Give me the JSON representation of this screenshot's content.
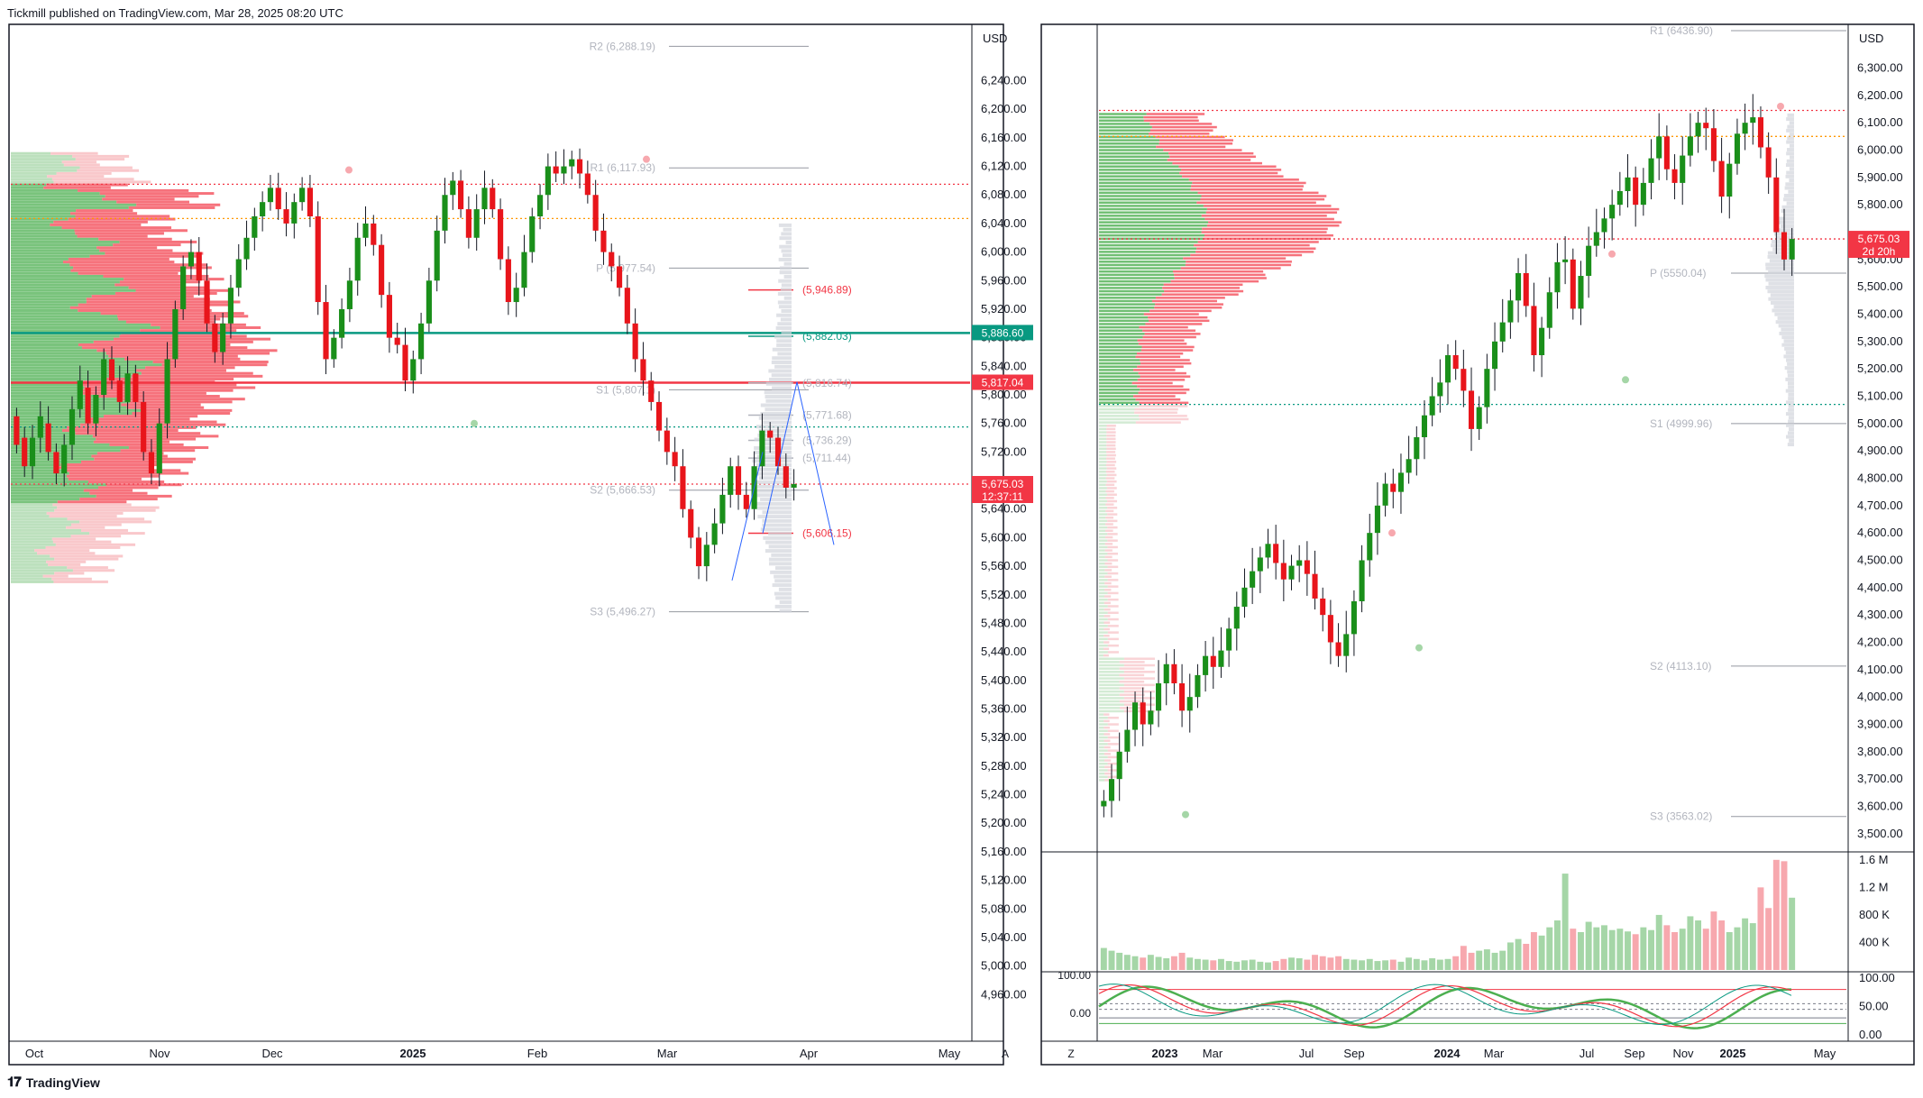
{
  "header": {
    "text": "Tickmill published on TradingView.com, Mar 28, 2025 08:20 UTC"
  },
  "footer": {
    "brand": "TradingView"
  },
  "colors": {
    "up": "#089981",
    "up_candle": "#1a8f1a",
    "down": "#f23645",
    "down_candle": "#e8151b",
    "grid": "#f0f3fa",
    "axis_text": "#131722",
    "pivot": "#b2b5be"
  },
  "chart_data": [
    {
      "type": "candlestick",
      "title": "",
      "currency": "USD",
      "yaxis": {
        "range": [
          4920,
          6300
        ],
        "ticks": [
          "6,240.00",
          "6,200.00",
          "6,160.00",
          "6,120.00",
          "6,080.00",
          "6,040.00",
          "6,000.00",
          "5,960.00",
          "5,920.00",
          "5,880.00",
          "5,840.00",
          "5,800.00",
          "5,760.00",
          "5,720.00",
          "5,680.00",
          "5,640.00",
          "5,600.00",
          "5,560.00",
          "5,520.00",
          "5,480.00",
          "5,440.00",
          "5,400.00",
          "5,360.00",
          "5,320.00",
          "5,280.00",
          "5,240.00",
          "5,200.00",
          "5,160.00",
          "5,120.00",
          "5,080.00",
          "5,040.00",
          "5,000.00",
          "4,960.00"
        ]
      },
      "xaxis": {
        "ticks": [
          "Oct",
          "Nov",
          "Dec",
          "2025",
          "Feb",
          "Mar",
          "Apr",
          "May"
        ],
        "scale_button": "A"
      },
      "price_badges": [
        {
          "value": "5,886.60",
          "price": 5886.6,
          "color": "#089981"
        },
        {
          "value": "5,817.04",
          "price": 5817.04,
          "color": "#f23645"
        },
        {
          "value": "5,675.03",
          "sub": "12:37:11",
          "price": 5675.03,
          "color": "#f23645"
        }
      ],
      "pivot_labels": [
        {
          "text": "R2 (6,288.19)",
          "price": 6288.19
        },
        {
          "text": "R1 (6,117.93)",
          "price": 6117.93
        },
        {
          "text": "P (5,977.54)",
          "price": 5977.54
        },
        {
          "text": "S1 (5,807.1)",
          "price": 5807.1
        },
        {
          "text": "S2 (5,666.53)",
          "price": 5666.53
        },
        {
          "text": "S3 (5,496.27)",
          "price": 5496.27
        }
      ],
      "level_labels": [
        {
          "text": "(5,946.89)",
          "price": 5946.89,
          "color": "#f23645"
        },
        {
          "text": "(5,882.03)",
          "price": 5882.03,
          "color": "#089981"
        },
        {
          "text": "(5,816.74)",
          "price": 5816.74,
          "color": "#b2b5be"
        },
        {
          "text": "(5,771.68)",
          "price": 5771.68,
          "color": "#b2b5be"
        },
        {
          "text": "(5,736.29)",
          "price": 5736.29,
          "color": "#b2b5be"
        },
        {
          "text": "(5,711.44)",
          "price": 5711.44,
          "color": "#b2b5be"
        },
        {
          "text": "(5,606.15)",
          "price": 5606.15,
          "color": "#f23645"
        }
      ],
      "horizontal_lines": [
        {
          "price": 6095,
          "color": "#f23645",
          "style": "dotted"
        },
        {
          "price": 6047,
          "color": "#ff9800",
          "style": "dotted"
        },
        {
          "price": 5886.6,
          "color": "#089981",
          "style": "solid"
        },
        {
          "price": 5817.04,
          "color": "#f23645",
          "style": "solid"
        },
        {
          "price": 5755,
          "color": "#089981",
          "style": "dotted"
        },
        {
          "price": 5675.03,
          "color": "#f23645",
          "style": "dotted"
        }
      ],
      "candles": [
        [
          5770,
          5730
        ],
        [
          5740,
          5700
        ],
        [
          5700,
          5740
        ],
        [
          5740,
          5770
        ],
        [
          5760,
          5720
        ],
        [
          5720,
          5690
        ],
        [
          5690,
          5730
        ],
        [
          5730,
          5780
        ],
        [
          5780,
          5820
        ],
        [
          5810,
          5760
        ],
        [
          5760,
          5800
        ],
        [
          5800,
          5850
        ],
        [
          5850,
          5820
        ],
        [
          5820,
          5790
        ],
        [
          5790,
          5830
        ],
        [
          5830,
          5790
        ],
        [
          5790,
          5720
        ],
        [
          5720,
          5690
        ],
        [
          5690,
          5760
        ],
        [
          5760,
          5850
        ],
        [
          5850,
          5920
        ],
        [
          5920,
          5980
        ],
        [
          5980,
          6000
        ],
        [
          6000,
          5960
        ],
        [
          5960,
          5900
        ],
        [
          5900,
          5860
        ],
        [
          5860,
          5900
        ],
        [
          5900,
          5950
        ],
        [
          5950,
          5990
        ],
        [
          5990,
          6020
        ],
        [
          6020,
          6050
        ],
        [
          6050,
          6070
        ],
        [
          6070,
          6090
        ],
        [
          6090,
          6060
        ],
        [
          6060,
          6040
        ],
        [
          6040,
          6070
        ],
        [
          6070,
          6090
        ],
        [
          6090,
          6050
        ],
        [
          6050,
          5930
        ],
        [
          5930,
          5850
        ],
        [
          5850,
          5880
        ],
        [
          5880,
          5920
        ],
        [
          5920,
          5960
        ],
        [
          5960,
          6020
        ],
        [
          6020,
          6040
        ],
        [
          6040,
          6010
        ],
        [
          6010,
          5940
        ],
        [
          5940,
          5880
        ],
        [
          5880,
          5870
        ],
        [
          5870,
          5820
        ],
        [
          5820,
          5850
        ],
        [
          5850,
          5900
        ],
        [
          5900,
          5960
        ],
        [
          5960,
          6030
        ],
        [
          6030,
          6080
        ],
        [
          6080,
          6100
        ],
        [
          6100,
          6060
        ],
        [
          6060,
          6020
        ],
        [
          6020,
          6060
        ],
        [
          6060,
          6090
        ],
        [
          6090,
          6060
        ],
        [
          6060,
          5990
        ],
        [
          5990,
          5930
        ],
        [
          5930,
          5950
        ],
        [
          5950,
          6000
        ],
        [
          6000,
          6050
        ],
        [
          6050,
          6080
        ],
        [
          6080,
          6120
        ],
        [
          6120,
          6110
        ],
        [
          6110,
          6120
        ],
        [
          6120,
          6130
        ],
        [
          6130,
          6110
        ],
        [
          6110,
          6080
        ],
        [
          6080,
          6030
        ],
        [
          6030,
          6000
        ],
        [
          6000,
          5980
        ],
        [
          5980,
          5950
        ],
        [
          5950,
          5900
        ],
        [
          5900,
          5850
        ],
        [
          5850,
          5820
        ],
        [
          5820,
          5790
        ],
        [
          5790,
          5750
        ],
        [
          5750,
          5720
        ],
        [
          5720,
          5700
        ],
        [
          5700,
          5640
        ],
        [
          5640,
          5600
        ],
        [
          5600,
          5560
        ],
        [
          5560,
          5590
        ],
        [
          5590,
          5620
        ],
        [
          5620,
          5660
        ],
        [
          5660,
          5700
        ],
        [
          5700,
          5660
        ],
        [
          5660,
          5640
        ],
        [
          5640,
          5700
        ],
        [
          5700,
          5750
        ],
        [
          5750,
          5740
        ],
        [
          5740,
          5700
        ],
        [
          5700,
          5670
        ],
        [
          5670,
          5675
        ]
      ]
    },
    {
      "type": "candlestick",
      "title": "",
      "currency": "USD",
      "yaxis": {
        "range": [
          3450,
          6450
        ],
        "ticks": [
          "6,300.00",
          "6,200.00",
          "6,100.00",
          "6,000.00",
          "5,900.00",
          "5,800.00",
          "5,600.00",
          "5,500.00",
          "5,400.00",
          "5,300.00",
          "5,200.00",
          "5,100.00",
          "5,000.00",
          "4,900.00",
          "4,800.00",
          "4,700.00",
          "4,600.00",
          "4,500.00",
          "4,400.00",
          "4,300.00",
          "4,200.00",
          "4,100.00",
          "4,000.00",
          "3,900.00",
          "3,800.00",
          "3,700.00",
          "3,600.00",
          "3,500.00"
        ]
      },
      "xaxis": {
        "ticks": [
          "2023",
          "Mar",
          "Jul",
          "Sep",
          "2024",
          "Mar",
          "Jul",
          "Sep",
          "Nov",
          "2025",
          "May"
        ],
        "scale_button": "Z"
      },
      "price_badges": [
        {
          "value": "5,675.03",
          "sub": "2d 20h",
          "price": 5675.03,
          "color": "#f23645"
        }
      ],
      "pivot_labels": [
        {
          "text": "R1 (6436.90)",
          "price": 6436.9
        },
        {
          "text": "P (5550.04)",
          "price": 5550.04
        },
        {
          "text": "S1 (4999.96)",
          "price": 4999.96
        },
        {
          "text": "S2 (4113.10)",
          "price": 4113.1
        },
        {
          "text": "S3 (3563.02)",
          "price": 3563.02
        }
      ],
      "horizontal_lines": [
        {
          "price": 6145,
          "color": "#f23645",
          "style": "dotted"
        },
        {
          "price": 6050,
          "color": "#ff9800",
          "style": "dotted"
        },
        {
          "price": 5675.03,
          "color": "#f23645",
          "style": "dotted"
        },
        {
          "price": 5070,
          "color": "#089981",
          "style": "dotted"
        }
      ],
      "volume_axis": [
        "1.6 M",
        "1.2 M",
        "800 K",
        "400 K"
      ],
      "oscillator_axis": [
        "100.00",
        "50.00",
        "0.00"
      ],
      "oscillator_left_labels": [
        "100.00",
        "0.00"
      ],
      "candles": [
        [
          3600,
          3620
        ],
        [
          3620,
          3700
        ],
        [
          3700,
          3800
        ],
        [
          3800,
          3880
        ],
        [
          3880,
          3980
        ],
        [
          3980,
          3900
        ],
        [
          3900,
          3950
        ],
        [
          3950,
          4050
        ],
        [
          4050,
          4120
        ],
        [
          4120,
          4050
        ],
        [
          4050,
          3950
        ],
        [
          3950,
          4000
        ],
        [
          4000,
          4080
        ],
        [
          4080,
          4150
        ],
        [
          4150,
          4110
        ],
        [
          4110,
          4170
        ],
        [
          4170,
          4250
        ],
        [
          4250,
          4330
        ],
        [
          4330,
          4400
        ],
        [
          4400,
          4460
        ],
        [
          4460,
          4510
        ],
        [
          4510,
          4560
        ],
        [
          4560,
          4490
        ],
        [
          4490,
          4430
        ],
        [
          4430,
          4480
        ],
        [
          4480,
          4500
        ],
        [
          4500,
          4450
        ],
        [
          4450,
          4360
        ],
        [
          4360,
          4300
        ],
        [
          4300,
          4200
        ],
        [
          4200,
          4150
        ],
        [
          4150,
          4230
        ],
        [
          4230,
          4350
        ],
        [
          4350,
          4500
        ],
        [
          4500,
          4600
        ],
        [
          4600,
          4700
        ],
        [
          4700,
          4780
        ],
        [
          4780,
          4750
        ],
        [
          4750,
          4820
        ],
        [
          4820,
          4870
        ],
        [
          4870,
          4950
        ],
        [
          4950,
          5030
        ],
        [
          5030,
          5100
        ],
        [
          5100,
          5150
        ],
        [
          5150,
          5250
        ],
        [
          5250,
          5200
        ],
        [
          5200,
          5120
        ],
        [
          5120,
          4980
        ],
        [
          4980,
          5060
        ],
        [
          5060,
          5200
        ],
        [
          5200,
          5300
        ],
        [
          5300,
          5370
        ],
        [
          5370,
          5450
        ],
        [
          5450,
          5550
        ],
        [
          5550,
          5430
        ],
        [
          5430,
          5250
        ],
        [
          5250,
          5350
        ],
        [
          5350,
          5480
        ],
        [
          5480,
          5590
        ],
        [
          5590,
          5600
        ],
        [
          5600,
          5420
        ],
        [
          5420,
          5540
        ],
        [
          5540,
          5650
        ],
        [
          5650,
          5700
        ],
        [
          5700,
          5750
        ],
        [
          5750,
          5800
        ],
        [
          5800,
          5850
        ],
        [
          5850,
          5900
        ],
        [
          5900,
          5800
        ],
        [
          5800,
          5880
        ],
        [
          5880,
          5970
        ],
        [
          5970,
          6050
        ],
        [
          6050,
          5930
        ],
        [
          5930,
          5880
        ],
        [
          5880,
          5980
        ],
        [
          5980,
          6050
        ],
        [
          6050,
          6100
        ],
        [
          6100,
          6080
        ],
        [
          6080,
          5960
        ],
        [
          5960,
          5830
        ],
        [
          5830,
          5950
        ],
        [
          5950,
          6060
        ],
        [
          6060,
          6100
        ],
        [
          6100,
          6120
        ],
        [
          6120,
          6010
        ],
        [
          6010,
          5900
        ],
        [
          5900,
          5700
        ],
        [
          5700,
          5600
        ],
        [
          5600,
          5675
        ]
      ],
      "volume": [
        0.32,
        0.28,
        0.25,
        0.22,
        0.2,
        0.18,
        0.22,
        0.19,
        0.17,
        0.2,
        0.25,
        0.18,
        0.16,
        0.15,
        0.14,
        0.16,
        0.13,
        0.12,
        0.14,
        0.15,
        0.12,
        0.11,
        0.13,
        0.16,
        0.18,
        0.17,
        0.15,
        0.22,
        0.2,
        0.18,
        0.2,
        0.16,
        0.15,
        0.14,
        0.16,
        0.13,
        0.14,
        0.15,
        0.12,
        0.18,
        0.16,
        0.14,
        0.17,
        0.15,
        0.16,
        0.2,
        0.35,
        0.25,
        0.28,
        0.3,
        0.25,
        0.28,
        0.4,
        0.45,
        0.38,
        0.55,
        0.5,
        0.62,
        0.72,
        1.4,
        0.6,
        0.55,
        0.7,
        0.62,
        0.65,
        0.58,
        0.6,
        0.56,
        0.52,
        0.62,
        0.58,
        0.8,
        0.65,
        0.55,
        0.6,
        0.78,
        0.72,
        0.6,
        0.85,
        0.72,
        0.55,
        0.62,
        0.75,
        0.68,
        1.2,
        0.9,
        1.6,
        1.58,
        1.05
      ]
    }
  ]
}
